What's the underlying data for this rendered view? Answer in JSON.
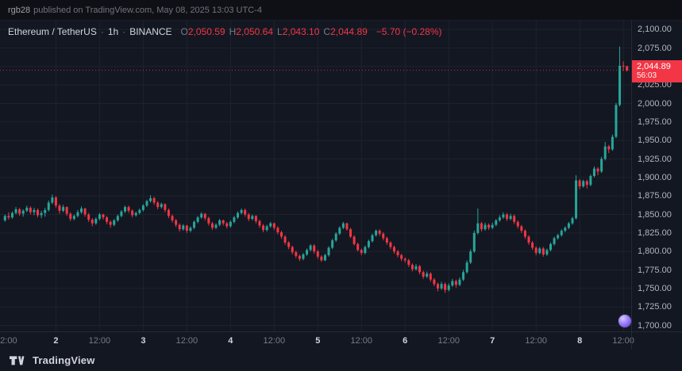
{
  "topbar": {
    "username": "rgb28",
    "publish_text": "published on TradingView.com, May 08, 2025 13:03 UTC-4"
  },
  "legend": {
    "symbol": "Ethereum / TetherUS",
    "sep": "·",
    "interval": "1h",
    "exchange": "BINANCE",
    "o_label": "O",
    "o_value": "2,050.59",
    "h_label": "H",
    "h_value": "2,050.64",
    "l_label": "L",
    "l_value": "2,043.10",
    "c_label": "C",
    "c_value": "2,044.89",
    "change": "−5.70 (−0.28%)"
  },
  "price_scale": {
    "current_price": "2,044.89",
    "countdown": "56:03"
  },
  "footer": {
    "brand": "TradingView"
  },
  "colors": {
    "up": "#26a69a",
    "down": "#f23645",
    "background": "#131722",
    "grid": "#1e222d",
    "axis_text": "#b2b5be",
    "muted_text": "#787b86",
    "bright_text": "#d1d4dc",
    "badge": "#f23645"
  },
  "chart_data": {
    "type": "candlestick",
    "title": "Ethereum / TetherUS · 1h · BINANCE",
    "x_range": "May 1 2025 10:00 - May 8 2025 13:00, hourly candles",
    "legend_position": "top-left",
    "grid": true,
    "price_axis": {
      "view_top": 2112,
      "view_bottom": 1692,
      "tick_step": 25,
      "ticks": [
        {
          "value": 2100,
          "label": "2,100.00"
        },
        {
          "value": 2075,
          "label": "2,075.00"
        },
        {
          "value": 2050,
          "label": "2,050.00"
        },
        {
          "value": 2025,
          "label": "2,025.00"
        },
        {
          "value": 2000,
          "label": "2,000.00"
        },
        {
          "value": 1975,
          "label": "1,975.00"
        },
        {
          "value": 1950,
          "label": "1,950.00"
        },
        {
          "value": 1925,
          "label": "1,925.00"
        },
        {
          "value": 1900,
          "label": "1,900.00"
        },
        {
          "value": 1875,
          "label": "1,875.00"
        },
        {
          "value": 1850,
          "label": "1,850.00"
        },
        {
          "value": 1825,
          "label": "1,825.00"
        },
        {
          "value": 1800,
          "label": "1,800.00"
        },
        {
          "value": 1775,
          "label": "1,775.00"
        },
        {
          "value": 1750,
          "label": "1,750.00"
        },
        {
          "value": 1725,
          "label": "1,725.00"
        },
        {
          "value": 1700,
          "label": "1,700.00"
        }
      ]
    },
    "time_ticks": [
      {
        "i": 1,
        "label": "2:00",
        "major": false
      },
      {
        "i": 14,
        "label": "2",
        "major": true
      },
      {
        "i": 26,
        "label": "12:00",
        "major": false
      },
      {
        "i": 38,
        "label": "3",
        "major": true
      },
      {
        "i": 50,
        "label": "12:00",
        "major": false
      },
      {
        "i": 62,
        "label": "4",
        "major": true
      },
      {
        "i": 74,
        "label": "12:00",
        "major": false
      },
      {
        "i": 86,
        "label": "5",
        "major": true
      },
      {
        "i": 98,
        "label": "12:00",
        "major": false
      },
      {
        "i": 110,
        "label": "6",
        "major": true
      },
      {
        "i": 122,
        "label": "12:00",
        "major": false
      },
      {
        "i": 134,
        "label": "7",
        "major": true
      },
      {
        "i": 146,
        "label": "12:00",
        "major": false
      },
      {
        "i": 158,
        "label": "8",
        "major": true
      },
      {
        "i": 170,
        "label": "12:00",
        "major": false
      }
    ],
    "last": {
      "open": 2050.59,
      "high": 2050.64,
      "low": 2043.1,
      "close": 2044.89,
      "change": -5.7,
      "change_pct": -0.28,
      "countdown": "56:03"
    },
    "candles": [
      [
        1842,
        1850,
        1840,
        1848
      ],
      [
        1848,
        1853,
        1843,
        1846
      ],
      [
        1846,
        1854,
        1844,
        1852
      ],
      [
        1852,
        1860,
        1850,
        1857
      ],
      [
        1857,
        1859,
        1848,
        1851
      ],
      [
        1851,
        1857,
        1847,
        1855
      ],
      [
        1855,
        1862,
        1853,
        1859
      ],
      [
        1859,
        1861,
        1850,
        1853
      ],
      [
        1853,
        1859,
        1849,
        1856
      ],
      [
        1856,
        1858,
        1846,
        1849
      ],
      [
        1849,
        1855,
        1845,
        1852
      ],
      [
        1852,
        1859,
        1847,
        1856
      ],
      [
        1856,
        1869,
        1854,
        1866
      ],
      [
        1866,
        1877,
        1864,
        1873
      ],
      [
        1873,
        1875,
        1859,
        1862
      ],
      [
        1862,
        1864,
        1851,
        1855
      ],
      [
        1855,
        1863,
        1853,
        1860
      ],
      [
        1860,
        1861,
        1848,
        1851
      ],
      [
        1851,
        1853,
        1841,
        1844
      ],
      [
        1844,
        1850,
        1842,
        1848
      ],
      [
        1848,
        1856,
        1846,
        1853
      ],
      [
        1853,
        1861,
        1851,
        1858
      ],
      [
        1858,
        1859,
        1847,
        1850
      ],
      [
        1850,
        1852,
        1840,
        1843
      ],
      [
        1843,
        1845,
        1834,
        1838
      ],
      [
        1838,
        1846,
        1836,
        1844
      ],
      [
        1844,
        1852,
        1842,
        1850
      ],
      [
        1850,
        1851,
        1843,
        1846
      ],
      [
        1846,
        1848,
        1837,
        1840
      ],
      [
        1840,
        1842,
        1832,
        1836
      ],
      [
        1836,
        1844,
        1834,
        1842
      ],
      [
        1842,
        1850,
        1840,
        1848
      ],
      [
        1848,
        1856,
        1846,
        1854
      ],
      [
        1854,
        1862,
        1852,
        1860
      ],
      [
        1860,
        1862,
        1852,
        1855
      ],
      [
        1855,
        1857,
        1846,
        1849
      ],
      [
        1849,
        1854,
        1847,
        1852
      ],
      [
        1852,
        1858,
        1850,
        1856
      ],
      [
        1856,
        1864,
        1854,
        1862
      ],
      [
        1862,
        1870,
        1860,
        1868
      ],
      [
        1868,
        1876,
        1866,
        1872
      ],
      [
        1872,
        1874,
        1863,
        1866
      ],
      [
        1866,
        1868,
        1857,
        1860
      ],
      [
        1860,
        1866,
        1858,
        1864
      ],
      [
        1864,
        1865,
        1853,
        1856
      ],
      [
        1856,
        1858,
        1845,
        1848
      ],
      [
        1848,
        1850,
        1839,
        1842
      ],
      [
        1842,
        1844,
        1833,
        1836
      ],
      [
        1836,
        1838,
        1827,
        1830
      ],
      [
        1830,
        1837,
        1828,
        1835
      ],
      [
        1835,
        1836,
        1825,
        1828
      ],
      [
        1828,
        1834,
        1826,
        1832
      ],
      [
        1832,
        1842,
        1830,
        1840
      ],
      [
        1840,
        1848,
        1838,
        1846
      ],
      [
        1846,
        1853,
        1844,
        1851
      ],
      [
        1851,
        1852,
        1842,
        1845
      ],
      [
        1845,
        1847,
        1835,
        1838
      ],
      [
        1838,
        1840,
        1829,
        1832
      ],
      [
        1832,
        1838,
        1830,
        1836
      ],
      [
        1836,
        1844,
        1834,
        1842
      ],
      [
        1842,
        1843,
        1835,
        1838
      ],
      [
        1838,
        1840,
        1831,
        1834
      ],
      [
        1834,
        1842,
        1832,
        1840
      ],
      [
        1840,
        1848,
        1838,
        1846
      ],
      [
        1846,
        1854,
        1844,
        1852
      ],
      [
        1852,
        1858,
        1850,
        1856
      ],
      [
        1856,
        1858,
        1847,
        1850
      ],
      [
        1850,
        1852,
        1841,
        1844
      ],
      [
        1844,
        1850,
        1842,
        1848
      ],
      [
        1848,
        1849,
        1838,
        1841
      ],
      [
        1841,
        1843,
        1832,
        1835
      ],
      [
        1835,
        1837,
        1826,
        1829
      ],
      [
        1829,
        1836,
        1827,
        1834
      ],
      [
        1834,
        1840,
        1832,
        1838
      ],
      [
        1838,
        1839,
        1829,
        1832
      ],
      [
        1832,
        1834,
        1823,
        1826
      ],
      [
        1826,
        1828,
        1817,
        1820
      ],
      [
        1820,
        1822,
        1809,
        1812
      ],
      [
        1812,
        1814,
        1803,
        1806
      ],
      [
        1806,
        1808,
        1796,
        1799
      ],
      [
        1799,
        1801,
        1791,
        1794
      ],
      [
        1794,
        1796,
        1787,
        1790
      ],
      [
        1790,
        1798,
        1788,
        1796
      ],
      [
        1796,
        1804,
        1794,
        1802
      ],
      [
        1802,
        1810,
        1800,
        1808
      ],
      [
        1808,
        1810,
        1797,
        1800
      ],
      [
        1800,
        1802,
        1790,
        1793
      ],
      [
        1793,
        1795,
        1786,
        1788
      ],
      [
        1788,
        1797,
        1787,
        1795
      ],
      [
        1795,
        1807,
        1793,
        1805
      ],
      [
        1805,
        1817,
        1803,
        1815
      ],
      [
        1815,
        1826,
        1813,
        1824
      ],
      [
        1824,
        1834,
        1822,
        1832
      ],
      [
        1832,
        1840,
        1830,
        1838
      ],
      [
        1838,
        1839,
        1828,
        1830
      ],
      [
        1830,
        1832,
        1818,
        1820
      ],
      [
        1820,
        1822,
        1808,
        1810
      ],
      [
        1810,
        1812,
        1800,
        1802
      ],
      [
        1802,
        1804,
        1795,
        1798
      ],
      [
        1798,
        1808,
        1796,
        1806
      ],
      [
        1806,
        1816,
        1804,
        1814
      ],
      [
        1814,
        1824,
        1812,
        1822
      ],
      [
        1822,
        1830,
        1820,
        1828
      ],
      [
        1828,
        1830,
        1821,
        1824
      ],
      [
        1824,
        1826,
        1815,
        1818
      ],
      [
        1818,
        1820,
        1809,
        1812
      ],
      [
        1812,
        1814,
        1803,
        1806
      ],
      [
        1806,
        1808,
        1797,
        1800
      ],
      [
        1800,
        1802,
        1792,
        1795
      ],
      [
        1795,
        1797,
        1787,
        1790
      ],
      [
        1790,
        1792,
        1785,
        1788
      ],
      [
        1788,
        1790,
        1779,
        1782
      ],
      [
        1782,
        1784,
        1773,
        1776
      ],
      [
        1776,
        1783,
        1774,
        1780
      ],
      [
        1780,
        1782,
        1769,
        1772
      ],
      [
        1772,
        1774,
        1763,
        1766
      ],
      [
        1766,
        1773,
        1764,
        1770
      ],
      [
        1770,
        1772,
        1759,
        1762
      ],
      [
        1762,
        1764,
        1753,
        1756
      ],
      [
        1756,
        1758,
        1746,
        1750
      ],
      [
        1750,
        1759,
        1748,
        1756
      ],
      [
        1756,
        1758,
        1744,
        1748
      ],
      [
        1748,
        1757,
        1746,
        1754
      ],
      [
        1754,
        1763,
        1752,
        1760
      ],
      [
        1760,
        1762,
        1751,
        1755
      ],
      [
        1755,
        1765,
        1753,
        1762
      ],
      [
        1762,
        1775,
        1760,
        1772
      ],
      [
        1772,
        1788,
        1770,
        1785
      ],
      [
        1785,
        1803,
        1783,
        1800
      ],
      [
        1800,
        1828,
        1798,
        1825
      ],
      [
        1825,
        1858,
        1823,
        1838
      ],
      [
        1838,
        1840,
        1827,
        1830
      ],
      [
        1830,
        1839,
        1828,
        1836
      ],
      [
        1836,
        1838,
        1829,
        1832
      ],
      [
        1832,
        1839,
        1830,
        1836
      ],
      [
        1836,
        1844,
        1834,
        1842
      ],
      [
        1842,
        1849,
        1840,
        1846
      ],
      [
        1846,
        1853,
        1844,
        1850
      ],
      [
        1850,
        1852,
        1841,
        1844
      ],
      [
        1844,
        1851,
        1842,
        1848
      ],
      [
        1848,
        1850,
        1837,
        1840
      ],
      [
        1840,
        1842,
        1831,
        1834
      ],
      [
        1834,
        1836,
        1825,
        1828
      ],
      [
        1828,
        1830,
        1817,
        1820
      ],
      [
        1820,
        1822,
        1809,
        1812
      ],
      [
        1812,
        1814,
        1802,
        1805
      ],
      [
        1805,
        1807,
        1795,
        1798
      ],
      [
        1798,
        1806,
        1796,
        1804
      ],
      [
        1804,
        1806,
        1793,
        1796
      ],
      [
        1796,
        1804,
        1794,
        1802
      ],
      [
        1802,
        1812,
        1800,
        1810
      ],
      [
        1810,
        1820,
        1808,
        1818
      ],
      [
        1818,
        1824,
        1816,
        1822
      ],
      [
        1822,
        1830,
        1820,
        1828
      ],
      [
        1828,
        1834,
        1826,
        1832
      ],
      [
        1832,
        1840,
        1830,
        1838
      ],
      [
        1838,
        1847,
        1836,
        1845
      ],
      [
        1845,
        1903,
        1843,
        1896
      ],
      [
        1896,
        1898,
        1884,
        1888
      ],
      [
        1888,
        1897,
        1886,
        1895
      ],
      [
        1895,
        1897,
        1885,
        1890
      ],
      [
        1890,
        1904,
        1888,
        1902
      ],
      [
        1902,
        1915,
        1900,
        1912
      ],
      [
        1912,
        1914,
        1903,
        1908
      ],
      [
        1908,
        1928,
        1906,
        1925
      ],
      [
        1925,
        1948,
        1923,
        1942
      ],
      [
        1942,
        1944,
        1933,
        1938
      ],
      [
        1938,
        1958,
        1936,
        1955
      ],
      [
        1955,
        2001,
        1953,
        1998
      ],
      [
        1998,
        2077,
        1996,
        2051
      ],
      [
        2051,
        2057,
        2044,
        2050
      ],
      [
        2050.59,
        2050.64,
        2043.1,
        2044.89
      ]
    ]
  }
}
